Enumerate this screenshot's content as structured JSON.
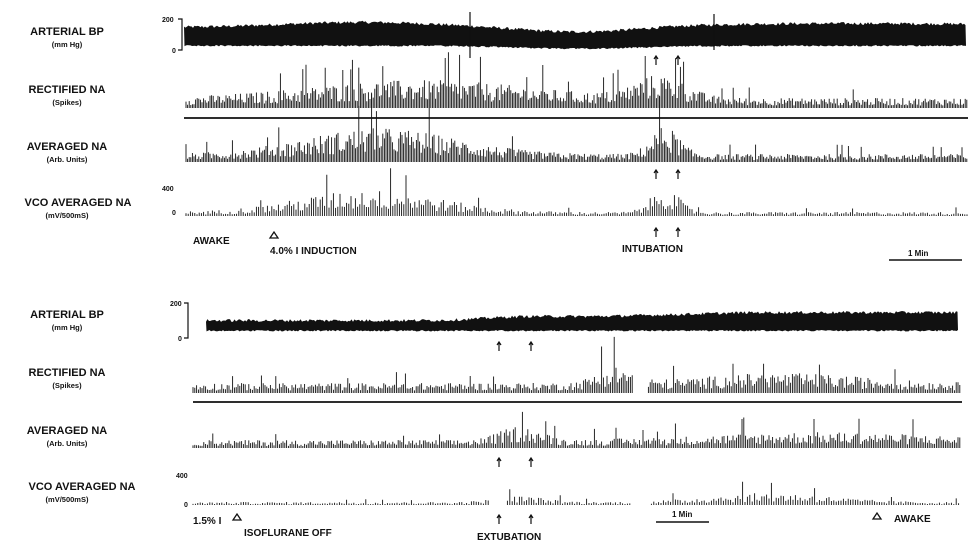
{
  "chart_data": [
    {
      "type": "line",
      "panel": "top",
      "channels": [
        {
          "label": "ARTERIAL BP",
          "unit": "(mm Hg)",
          "y_tick_top": "200",
          "y_tick_bottom": "0",
          "trace": "bp"
        },
        {
          "label": "RECTIFIED NA",
          "unit": "(Spikes)",
          "trace": "spikes"
        },
        {
          "label": "AVERAGED NA",
          "unit": "(Arb. Units)",
          "trace": "averaged"
        },
        {
          "label": "VCO AVERAGED NA",
          "unit": "(mV/500mS)",
          "y_tick_top": "400",
          "y_tick_bottom": "0",
          "trace": "vco"
        }
      ],
      "annotations": [
        {
          "text": "AWAKE"
        },
        {
          "text": "4.0% I INDUCTION"
        },
        {
          "text": "INTUBATION"
        }
      ],
      "scale_bar": "1 Min"
    },
    {
      "type": "line",
      "panel": "bottom",
      "channels": [
        {
          "label": "ARTERIAL BP",
          "unit": "(mm Hg)",
          "y_tick_top": "200",
          "y_tick_bottom": "0",
          "trace": "bp"
        },
        {
          "label": "RECTIFIED NA",
          "unit": "(Spikes)",
          "trace": "spikes"
        },
        {
          "label": "AVERAGED NA",
          "unit": "(Arb. Units)",
          "trace": "averaged"
        },
        {
          "label": "VCO AVERAGED NA",
          "unit": "(mV/500mS)",
          "y_tick_top": "400",
          "y_tick_bottom": "0",
          "trace": "vco"
        }
      ],
      "annotations": [
        {
          "text": "1.5% I"
        },
        {
          "text": "ISOFLURANE OFF"
        },
        {
          "text": "EXTUBATION"
        },
        {
          "text": "AWAKE"
        }
      ],
      "scale_bar": "1 Min"
    }
  ]
}
